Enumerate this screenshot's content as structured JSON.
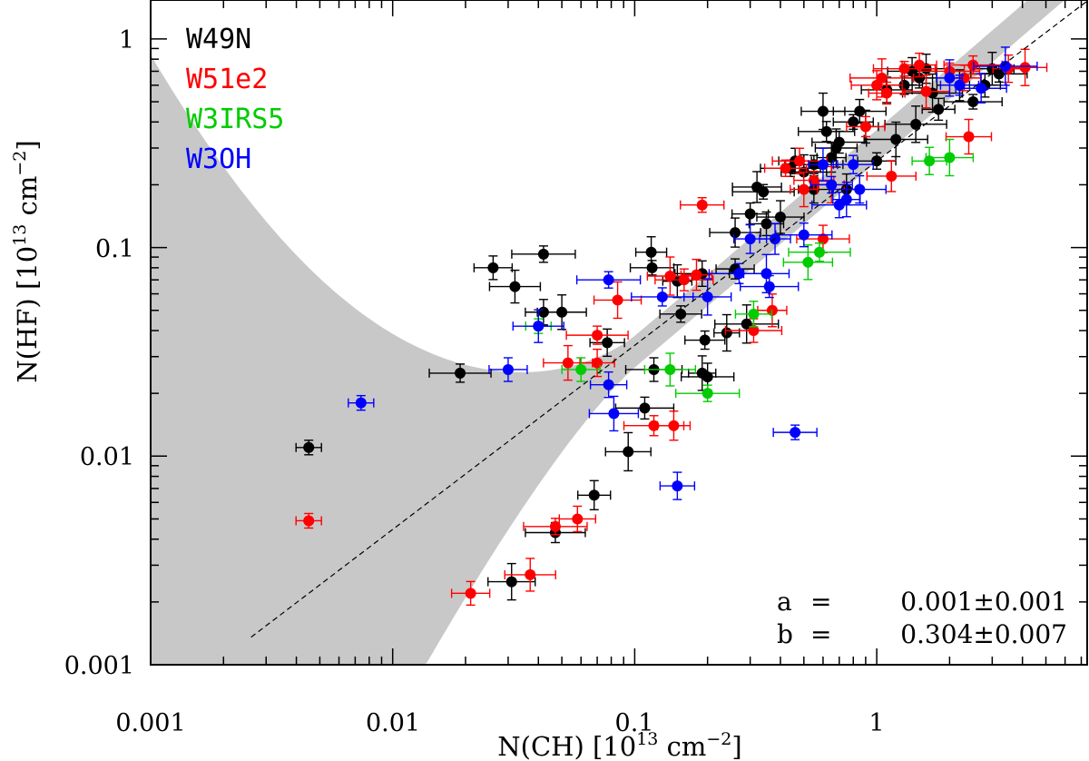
{
  "chart_data": {
    "type": "scatter",
    "x_scale": "log",
    "y_scale": "log",
    "xlim": [
      0.001,
      7.5
    ],
    "ylim": [
      0.001,
      1.6
    ],
    "x_ticks": [
      0.001,
      0.01,
      0.1,
      1
    ],
    "y_ticks": [
      0.001,
      0.01,
      0.1,
      1
    ],
    "x_tick_labels": [
      "0.001",
      "0.01",
      "0.1",
      "1"
    ],
    "y_tick_labels": [
      "0.001",
      "0.01",
      "0.1",
      "1"
    ],
    "xlabel": {
      "base": "N(CH) [10",
      "exp": "13",
      "mid": " cm",
      "exp2": "−2",
      "end": "]"
    },
    "ylabel": {
      "base": "N(HF) [10",
      "exp": "13",
      "mid": " cm",
      "exp2": "−2",
      "end": "]"
    },
    "fit_line": {
      "a": 0.001,
      "b": 0.304,
      "style": "dashed",
      "color": "#000000"
    },
    "confidence_band": {
      "color": "#c8c8c8"
    },
    "annotations": [
      {
        "label": "a",
        "eq": "=",
        "value": "0.001±0.001"
      },
      {
        "label": "b",
        "eq": "=",
        "value": "0.304±0.007"
      }
    ],
    "series": [
      {
        "name": "W49N",
        "color": "#000000",
        "points": [
          [
            0.0045,
            0.011
          ],
          [
            0.026,
            0.08
          ],
          [
            0.032,
            0.065
          ],
          [
            0.042,
            0.093
          ],
          [
            0.042,
            0.049
          ],
          [
            0.05,
            0.049
          ],
          [
            0.019,
            0.025
          ],
          [
            0.077,
            0.035
          ],
          [
            0.031,
            0.0025
          ],
          [
            0.047,
            0.0043
          ],
          [
            0.068,
            0.0065
          ],
          [
            0.094,
            0.0105
          ],
          [
            0.11,
            0.017
          ],
          [
            0.117,
            0.095
          ],
          [
            0.118,
            0.08
          ],
          [
            0.12,
            0.026
          ],
          [
            0.15,
            0.069
          ],
          [
            0.155,
            0.048
          ],
          [
            0.19,
            0.075
          ],
          [
            0.19,
            0.025
          ],
          [
            0.195,
            0.036
          ],
          [
            0.2,
            0.024
          ],
          [
            0.24,
            0.039
          ],
          [
            0.26,
            0.079
          ],
          [
            0.26,
            0.118
          ],
          [
            0.29,
            0.043
          ],
          [
            0.3,
            0.145
          ],
          [
            0.32,
            0.195
          ],
          [
            0.34,
            0.185
          ],
          [
            0.35,
            0.13
          ],
          [
            0.4,
            0.14
          ],
          [
            0.44,
            0.24
          ],
          [
            0.46,
            0.26
          ],
          [
            0.5,
            0.23
          ],
          [
            0.55,
            0.25
          ],
          [
            0.55,
            0.19
          ],
          [
            0.6,
            0.45
          ],
          [
            0.62,
            0.36
          ],
          [
            0.65,
            0.27
          ],
          [
            0.68,
            0.3
          ],
          [
            0.7,
            0.32
          ],
          [
            0.75,
            0.19
          ],
          [
            0.8,
            0.4
          ],
          [
            0.85,
            0.45
          ],
          [
            0.9,
            0.38
          ],
          [
            1.0,
            0.26
          ],
          [
            1.1,
            0.57
          ],
          [
            1.2,
            0.33
          ],
          [
            1.3,
            0.6
          ],
          [
            1.4,
            0.7
          ],
          [
            1.45,
            0.39
          ],
          [
            1.5,
            0.65
          ],
          [
            1.6,
            0.72
          ],
          [
            1.7,
            0.55
          ],
          [
            1.8,
            0.46
          ],
          [
            2.2,
            0.6
          ],
          [
            2.5,
            0.5
          ],
          [
            2.8,
            0.6
          ],
          [
            3.0,
            0.72
          ],
          [
            3.2,
            0.68
          ]
        ]
      },
      {
        "name": "W51e2",
        "color": "#ff0000",
        "points": [
          [
            0.0045,
            0.0049
          ],
          [
            0.021,
            0.0022
          ],
          [
            0.037,
            0.0027
          ],
          [
            0.047,
            0.0046
          ],
          [
            0.058,
            0.005
          ],
          [
            0.053,
            0.028
          ],
          [
            0.07,
            0.038
          ],
          [
            0.07,
            0.028
          ],
          [
            0.085,
            0.056
          ],
          [
            0.12,
            0.014
          ],
          [
            0.145,
            0.014
          ],
          [
            0.14,
            0.073
          ],
          [
            0.16,
            0.07
          ],
          [
            0.18,
            0.074
          ],
          [
            0.19,
            0.16
          ],
          [
            0.31,
            0.04
          ],
          [
            0.37,
            0.05
          ],
          [
            0.42,
            0.24
          ],
          [
            0.48,
            0.26
          ],
          [
            0.5,
            0.19
          ],
          [
            0.55,
            0.21
          ],
          [
            0.6,
            0.11
          ],
          [
            0.65,
            0.2
          ],
          [
            0.9,
            0.38
          ],
          [
            1.0,
            0.6
          ],
          [
            1.05,
            0.65
          ],
          [
            1.1,
            0.55
          ],
          [
            1.15,
            0.22
          ],
          [
            1.3,
            0.72
          ],
          [
            1.5,
            0.75
          ],
          [
            1.6,
            0.56
          ],
          [
            2.0,
            0.7
          ],
          [
            2.3,
            0.65
          ],
          [
            2.4,
            0.34
          ],
          [
            2.5,
            0.75
          ],
          [
            3.5,
            0.72
          ],
          [
            4.1,
            0.73
          ]
        ]
      },
      {
        "name": "W3IRS5",
        "color": "#00cc00",
        "points": [
          [
            0.04,
            0.042
          ],
          [
            0.06,
            0.026
          ],
          [
            0.14,
            0.026
          ],
          [
            0.2,
            0.02
          ],
          [
            0.31,
            0.048
          ],
          [
            0.52,
            0.085
          ],
          [
            0.58,
            0.095
          ],
          [
            1.65,
            0.26
          ],
          [
            2.0,
            0.27
          ]
        ]
      },
      {
        "name": "W3OH",
        "color": "#0000ff",
        "points": [
          [
            0.0074,
            0.018
          ],
          [
            0.03,
            0.026
          ],
          [
            0.04,
            0.042
          ],
          [
            0.078,
            0.07
          ],
          [
            0.078,
            0.022
          ],
          [
            0.082,
            0.016
          ],
          [
            0.13,
            0.058
          ],
          [
            0.15,
            0.0072
          ],
          [
            0.2,
            0.058
          ],
          [
            0.27,
            0.075
          ],
          [
            0.3,
            0.11
          ],
          [
            0.35,
            0.075
          ],
          [
            0.36,
            0.065
          ],
          [
            0.38,
            0.11
          ],
          [
            0.46,
            0.013
          ],
          [
            0.5,
            0.115
          ],
          [
            0.6,
            0.25
          ],
          [
            0.65,
            0.2
          ],
          [
            0.7,
            0.16
          ],
          [
            0.75,
            0.17
          ],
          [
            0.8,
            0.25
          ],
          [
            0.85,
            0.19
          ],
          [
            2.0,
            0.65
          ],
          [
            2.2,
            0.6
          ],
          [
            2.7,
            0.58
          ],
          [
            3.4,
            0.74
          ]
        ]
      }
    ]
  }
}
